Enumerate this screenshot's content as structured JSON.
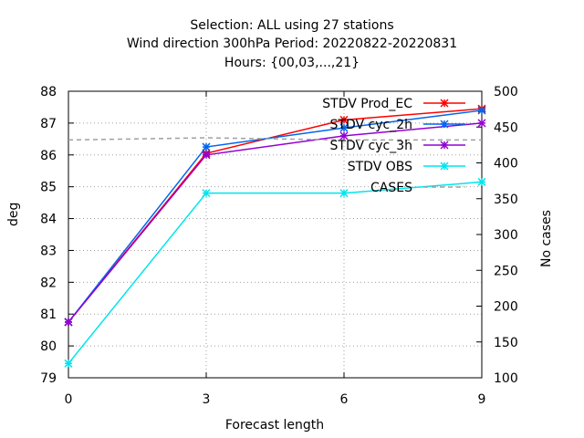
{
  "chart_data": {
    "type": "line",
    "title_lines": [
      "Selection: ALL using    27 stations",
      "Wind direction 300hPa   Period: 20220822-20220831",
      "Hours: {00,03,...,21}"
    ],
    "xlabel": "Forecast length",
    "ylabel": "deg",
    "y2label": "No cases",
    "x": [
      0,
      3,
      6,
      9
    ],
    "xticks": [
      "0",
      "3",
      "6",
      "9"
    ],
    "ylim": [
      79,
      88
    ],
    "yticks": [
      "79",
      "80",
      "81",
      "82",
      "83",
      "84",
      "85",
      "86",
      "87",
      "88"
    ],
    "y2lim": [
      100,
      500
    ],
    "y2ticks": [
      "100",
      "150",
      "200",
      "250",
      "300",
      "350",
      "400",
      "450",
      "500"
    ],
    "grid": true,
    "legend_position": "top-right",
    "series": [
      {
        "name": "STDV Prod_EC",
        "color": "#ff0000",
        "axis": "y",
        "values": [
          80.75,
          86.05,
          87.1,
          87.45
        ]
      },
      {
        "name": "STDV cyc_2h",
        "color": "#0066ee",
        "axis": "y",
        "values": [
          80.75,
          86.25,
          86.85,
          87.4
        ]
      },
      {
        "name": "STDV cyc_3h",
        "color": "#9400d3",
        "axis": "y",
        "values": [
          80.75,
          86.0,
          86.6,
          87.0
        ]
      },
      {
        "name": "STDV OBS",
        "color": "#00e5ee",
        "axis": "y",
        "values": [
          79.45,
          84.8,
          84.8,
          85.15
        ]
      },
      {
        "name": "CASES",
        "color": "#a0a0a0",
        "axis": "y2",
        "dashed": true,
        "values": [
          432,
          435,
          432,
          432
        ]
      }
    ]
  }
}
